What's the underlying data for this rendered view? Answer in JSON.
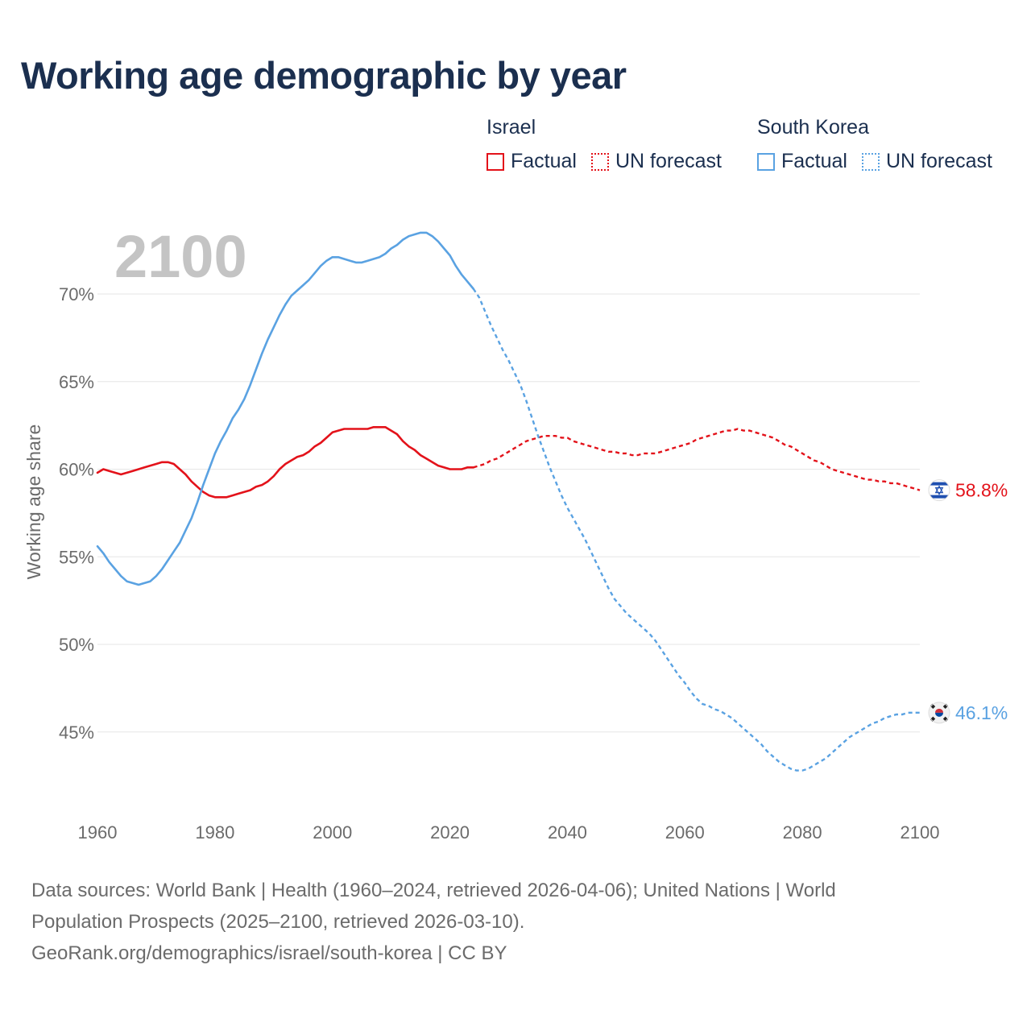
{
  "title": "Working age demographic by year",
  "legend": {
    "israel": {
      "name": "Israel",
      "factual": "Factual",
      "forecast": "UN forecast",
      "color": "#e3121a"
    },
    "korea": {
      "name": "South Korea",
      "factual": "Factual",
      "forecast": "UN forecast",
      "color": "#5aa2e2"
    }
  },
  "year_watermark": "2100",
  "source_lines": [
    "Data sources: World Bank | Health (1960–2024, retrieved 2026-04-06); United Nations | World",
    "Population Prospects (2025–2100, retrieved 2026-03-10).",
    "GeoRank.org/demographics/israel/south-korea | CC BY"
  ],
  "chart_data": {
    "type": "line",
    "title": "Working age demographic by year",
    "ylabel": "Working age share",
    "xlabel": "",
    "xlim": [
      1960,
      2100
    ],
    "ylim": [
      41,
      74
    ],
    "x_ticks": [
      1960,
      1980,
      2000,
      2020,
      2040,
      2060,
      2080,
      2100
    ],
    "x_tick_labels": [
      "1960",
      "1980",
      "2000",
      "2020",
      "2040",
      "2060",
      "2080",
      "2100"
    ],
    "y_ticks": [
      45,
      50,
      55,
      60,
      65,
      70
    ],
    "y_tick_labels": [
      "45%",
      "50%",
      "55%",
      "60%",
      "65%",
      "70%"
    ],
    "series": [
      {
        "name": "Israel",
        "color": "#e3121a",
        "factual_end": 2024,
        "end_label": "58.8%",
        "flag": "israel-flag",
        "points": [
          [
            1960,
            59.8
          ],
          [
            1961,
            60.0
          ],
          [
            1962,
            59.9
          ],
          [
            1963,
            59.8
          ],
          [
            1964,
            59.7
          ],
          [
            1965,
            59.8
          ],
          [
            1966,
            59.9
          ],
          [
            1967,
            60.0
          ],
          [
            1968,
            60.1
          ],
          [
            1969,
            60.2
          ],
          [
            1970,
            60.3
          ],
          [
            1971,
            60.4
          ],
          [
            1972,
            60.4
          ],
          [
            1973,
            60.3
          ],
          [
            1974,
            60.0
          ],
          [
            1975,
            59.7
          ],
          [
            1976,
            59.3
          ],
          [
            1977,
            59.0
          ],
          [
            1978,
            58.7
          ],
          [
            1979,
            58.5
          ],
          [
            1980,
            58.4
          ],
          [
            1981,
            58.4
          ],
          [
            1982,
            58.4
          ],
          [
            1983,
            58.5
          ],
          [
            1984,
            58.6
          ],
          [
            1985,
            58.7
          ],
          [
            1986,
            58.8
          ],
          [
            1987,
            59.0
          ],
          [
            1988,
            59.1
          ],
          [
            1989,
            59.3
          ],
          [
            1990,
            59.6
          ],
          [
            1991,
            60.0
          ],
          [
            1992,
            60.3
          ],
          [
            1993,
            60.5
          ],
          [
            1994,
            60.7
          ],
          [
            1995,
            60.8
          ],
          [
            1996,
            61.0
          ],
          [
            1997,
            61.3
          ],
          [
            1998,
            61.5
          ],
          [
            1999,
            61.8
          ],
          [
            2000,
            62.1
          ],
          [
            2001,
            62.2
          ],
          [
            2002,
            62.3
          ],
          [
            2003,
            62.3
          ],
          [
            2004,
            62.3
          ],
          [
            2005,
            62.3
          ],
          [
            2006,
            62.3
          ],
          [
            2007,
            62.4
          ],
          [
            2008,
            62.4
          ],
          [
            2009,
            62.4
          ],
          [
            2010,
            62.2
          ],
          [
            2011,
            62.0
          ],
          [
            2012,
            61.6
          ],
          [
            2013,
            61.3
          ],
          [
            2014,
            61.1
          ],
          [
            2015,
            60.8
          ],
          [
            2016,
            60.6
          ],
          [
            2017,
            60.4
          ],
          [
            2018,
            60.2
          ],
          [
            2019,
            60.1
          ],
          [
            2020,
            60.0
          ],
          [
            2021,
            60.0
          ],
          [
            2022,
            60.0
          ],
          [
            2023,
            60.1
          ],
          [
            2024,
            60.1
          ],
          [
            2025,
            60.2
          ],
          [
            2026,
            60.3
          ],
          [
            2027,
            60.5
          ],
          [
            2028,
            60.6
          ],
          [
            2029,
            60.8
          ],
          [
            2030,
            61.0
          ],
          [
            2031,
            61.2
          ],
          [
            2032,
            61.4
          ],
          [
            2033,
            61.6
          ],
          [
            2034,
            61.7
          ],
          [
            2035,
            61.8
          ],
          [
            2036,
            61.9
          ],
          [
            2037,
            61.9
          ],
          [
            2038,
            61.9
          ],
          [
            2039,
            61.8
          ],
          [
            2040,
            61.8
          ],
          [
            2041,
            61.6
          ],
          [
            2042,
            61.5
          ],
          [
            2043,
            61.4
          ],
          [
            2044,
            61.3
          ],
          [
            2045,
            61.2
          ],
          [
            2046,
            61.1
          ],
          [
            2047,
            61.0
          ],
          [
            2048,
            61.0
          ],
          [
            2049,
            60.9
          ],
          [
            2050,
            60.9
          ],
          [
            2051,
            60.8
          ],
          [
            2052,
            60.8
          ],
          [
            2053,
            60.9
          ],
          [
            2054,
            60.9
          ],
          [
            2055,
            60.9
          ],
          [
            2056,
            61.0
          ],
          [
            2057,
            61.1
          ],
          [
            2058,
            61.2
          ],
          [
            2059,
            61.3
          ],
          [
            2060,
            61.4
          ],
          [
            2061,
            61.5
          ],
          [
            2062,
            61.7
          ],
          [
            2063,
            61.8
          ],
          [
            2064,
            61.9
          ],
          [
            2065,
            62.0
          ],
          [
            2066,
            62.1
          ],
          [
            2067,
            62.2
          ],
          [
            2068,
            62.2
          ],
          [
            2069,
            62.3
          ],
          [
            2070,
            62.2
          ],
          [
            2071,
            62.2
          ],
          [
            2072,
            62.1
          ],
          [
            2073,
            62.0
          ],
          [
            2074,
            61.9
          ],
          [
            2075,
            61.8
          ],
          [
            2076,
            61.6
          ],
          [
            2077,
            61.4
          ],
          [
            2078,
            61.3
          ],
          [
            2079,
            61.1
          ],
          [
            2080,
            60.9
          ],
          [
            2081,
            60.7
          ],
          [
            2082,
            60.5
          ],
          [
            2083,
            60.4
          ],
          [
            2084,
            60.2
          ],
          [
            2085,
            60.0
          ],
          [
            2086,
            59.9
          ],
          [
            2087,
            59.8
          ],
          [
            2088,
            59.7
          ],
          [
            2089,
            59.6
          ],
          [
            2090,
            59.5
          ],
          [
            2091,
            59.4
          ],
          [
            2092,
            59.4
          ],
          [
            2093,
            59.3
          ],
          [
            2094,
            59.3
          ],
          [
            2095,
            59.2
          ],
          [
            2096,
            59.2
          ],
          [
            2097,
            59.1
          ],
          [
            2098,
            59.0
          ],
          [
            2099,
            58.9
          ],
          [
            2100,
            58.8
          ]
        ]
      },
      {
        "name": "South Korea",
        "color": "#5aa2e2",
        "factual_end": 2024,
        "end_label": "46.1%",
        "flag": "south-korea-flag",
        "points": [
          [
            1960,
            55.6
          ],
          [
            1961,
            55.2
          ],
          [
            1962,
            54.7
          ],
          [
            1963,
            54.3
          ],
          [
            1964,
            53.9
          ],
          [
            1965,
            53.6
          ],
          [
            1966,
            53.5
          ],
          [
            1967,
            53.4
          ],
          [
            1968,
            53.5
          ],
          [
            1969,
            53.6
          ],
          [
            1970,
            53.9
          ],
          [
            1971,
            54.3
          ],
          [
            1972,
            54.8
          ],
          [
            1973,
            55.3
          ],
          [
            1974,
            55.8
          ],
          [
            1975,
            56.5
          ],
          [
            1976,
            57.2
          ],
          [
            1977,
            58.1
          ],
          [
            1978,
            59.1
          ],
          [
            1979,
            60.0
          ],
          [
            1980,
            60.9
          ],
          [
            1981,
            61.6
          ],
          [
            1982,
            62.2
          ],
          [
            1983,
            62.9
          ],
          [
            1984,
            63.4
          ],
          [
            1985,
            64.0
          ],
          [
            1986,
            64.8
          ],
          [
            1987,
            65.7
          ],
          [
            1988,
            66.6
          ],
          [
            1989,
            67.4
          ],
          [
            1990,
            68.1
          ],
          [
            1991,
            68.8
          ],
          [
            1992,
            69.4
          ],
          [
            1993,
            69.9
          ],
          [
            1994,
            70.2
          ],
          [
            1995,
            70.5
          ],
          [
            1996,
            70.8
          ],
          [
            1997,
            71.2
          ],
          [
            1998,
            71.6
          ],
          [
            1999,
            71.9
          ],
          [
            2000,
            72.1
          ],
          [
            2001,
            72.1
          ],
          [
            2002,
            72.0
          ],
          [
            2003,
            71.9
          ],
          [
            2004,
            71.8
          ],
          [
            2005,
            71.8
          ],
          [
            2006,
            71.9
          ],
          [
            2007,
            72.0
          ],
          [
            2008,
            72.1
          ],
          [
            2009,
            72.3
          ],
          [
            2010,
            72.6
          ],
          [
            2011,
            72.8
          ],
          [
            2012,
            73.1
          ],
          [
            2013,
            73.3
          ],
          [
            2014,
            73.4
          ],
          [
            2015,
            73.5
          ],
          [
            2016,
            73.5
          ],
          [
            2017,
            73.3
          ],
          [
            2018,
            73.0
          ],
          [
            2019,
            72.6
          ],
          [
            2020,
            72.2
          ],
          [
            2021,
            71.6
          ],
          [
            2022,
            71.1
          ],
          [
            2023,
            70.7
          ],
          [
            2024,
            70.3
          ],
          [
            2025,
            69.8
          ],
          [
            2026,
            69.0
          ],
          [
            2027,
            68.2
          ],
          [
            2028,
            67.5
          ],
          [
            2029,
            66.8
          ],
          [
            2030,
            66.2
          ],
          [
            2031,
            65.5
          ],
          [
            2032,
            64.8
          ],
          [
            2033,
            63.9
          ],
          [
            2034,
            62.9
          ],
          [
            2035,
            61.9
          ],
          [
            2036,
            61.0
          ],
          [
            2037,
            60.1
          ],
          [
            2038,
            59.3
          ],
          [
            2039,
            58.5
          ],
          [
            2040,
            57.8
          ],
          [
            2041,
            57.2
          ],
          [
            2042,
            56.6
          ],
          [
            2043,
            56.0
          ],
          [
            2044,
            55.3
          ],
          [
            2045,
            54.6
          ],
          [
            2046,
            53.9
          ],
          [
            2047,
            53.2
          ],
          [
            2048,
            52.6
          ],
          [
            2049,
            52.2
          ],
          [
            2050,
            51.8
          ],
          [
            2051,
            51.5
          ],
          [
            2052,
            51.2
          ],
          [
            2053,
            50.9
          ],
          [
            2054,
            50.6
          ],
          [
            2055,
            50.2
          ],
          [
            2056,
            49.7
          ],
          [
            2057,
            49.2
          ],
          [
            2058,
            48.7
          ],
          [
            2059,
            48.2
          ],
          [
            2060,
            47.8
          ],
          [
            2061,
            47.3
          ],
          [
            2062,
            46.9
          ],
          [
            2063,
            46.6
          ],
          [
            2064,
            46.5
          ],
          [
            2065,
            46.3
          ],
          [
            2066,
            46.2
          ],
          [
            2067,
            46.0
          ],
          [
            2068,
            45.8
          ],
          [
            2069,
            45.5
          ],
          [
            2070,
            45.2
          ],
          [
            2071,
            44.9
          ],
          [
            2072,
            44.6
          ],
          [
            2073,
            44.3
          ],
          [
            2074,
            43.9
          ],
          [
            2075,
            43.6
          ],
          [
            2076,
            43.3
          ],
          [
            2077,
            43.1
          ],
          [
            2078,
            42.9
          ],
          [
            2079,
            42.8
          ],
          [
            2080,
            42.8
          ],
          [
            2081,
            42.9
          ],
          [
            2082,
            43.1
          ],
          [
            2083,
            43.3
          ],
          [
            2084,
            43.5
          ],
          [
            2085,
            43.8
          ],
          [
            2086,
            44.1
          ],
          [
            2087,
            44.4
          ],
          [
            2088,
            44.7
          ],
          [
            2089,
            44.9
          ],
          [
            2090,
            45.1
          ],
          [
            2091,
            45.3
          ],
          [
            2092,
            45.5
          ],
          [
            2093,
            45.6
          ],
          [
            2094,
            45.8
          ],
          [
            2095,
            45.9
          ],
          [
            2096,
            46.0
          ],
          [
            2097,
            46.0
          ],
          [
            2098,
            46.1
          ],
          [
            2099,
            46.1
          ],
          [
            2100,
            46.1
          ]
        ]
      }
    ]
  }
}
